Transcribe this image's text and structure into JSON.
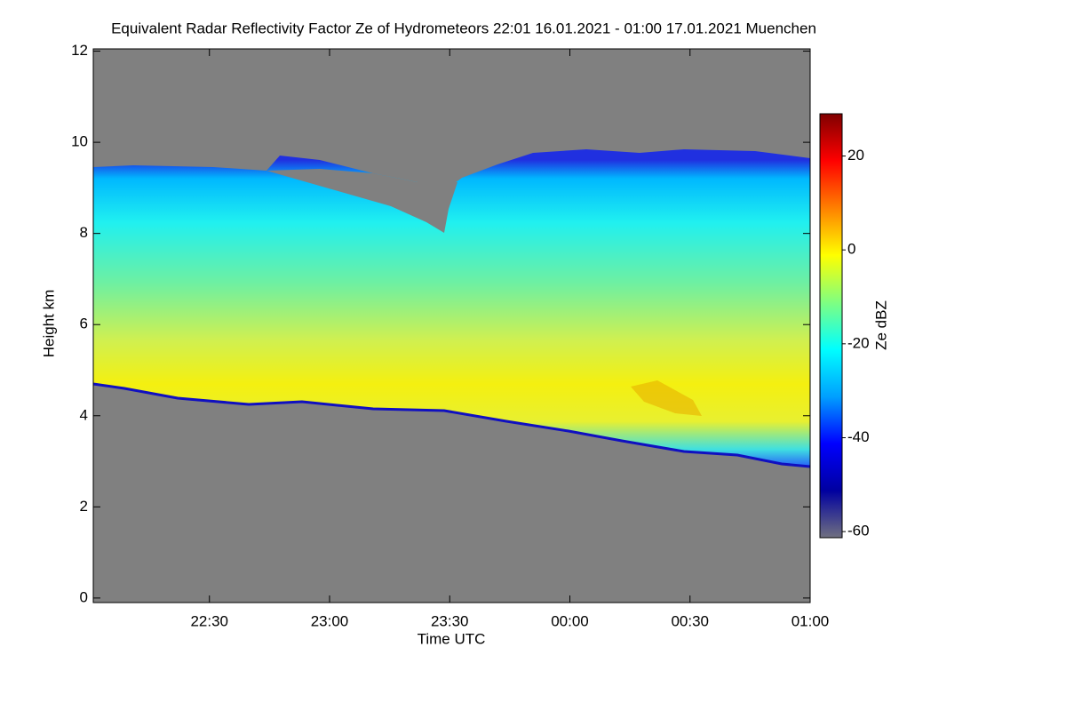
{
  "chart_data": {
    "type": "heatmap",
    "title": "Equivalent Radar Reflectivity Factor Ze of Hydrometeors   22:01 16.01.2021 - 01:00 17.01.2021 Muenchen",
    "xlabel": "Time UTC",
    "ylabel": "Height km",
    "xlim": [
      1,
      180
    ],
    "xticks": [
      {
        "value": 30,
        "label": "22:30"
      },
      {
        "value": 60,
        "label": "23:00"
      },
      {
        "value": 90,
        "label": "23:30"
      },
      {
        "value": 120,
        "label": "00:00"
      },
      {
        "value": 150,
        "label": "00:30"
      },
      {
        "value": 180,
        "label": "01:00"
      }
    ],
    "ylim": [
      -0.1,
      12.05
    ],
    "yticks": [
      0,
      2,
      4,
      6,
      8,
      10,
      12
    ],
    "colorbar_label": "Ze dBZ",
    "clim": [
      -61.3,
      29
    ],
    "cticks": [
      -60,
      -40,
      -20,
      0,
      20
    ],
    "background": "#808080",
    "colormap": [
      "#707080",
      "#0000a0",
      "#0000ff",
      "#00a0ff",
      "#00ffff",
      "#80ff80",
      "#ffff00",
      "#ff8000",
      "#ff0000",
      "#800000"
    ]
  }
}
